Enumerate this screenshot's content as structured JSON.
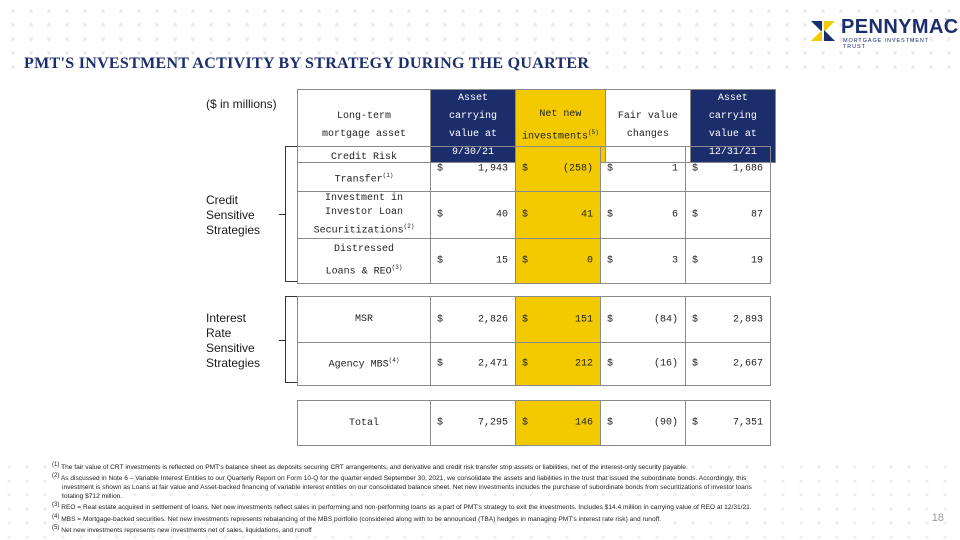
{
  "logo": {
    "name": "PENNYMAC",
    "tm": "™",
    "tagline": "MORTGAGE INVESTMENT TRUST"
  },
  "title": "PMT'S INVESTMENT ACTIVITY BY STRATEGY DURING THE QUARTER",
  "units": "($ in millions)",
  "colors": {
    "navy": "#1b2d6b",
    "yellow": "#f3ca00"
  },
  "header": {
    "label_line1": "Long-term",
    "label_line2": "mortgage asset",
    "col1_line1": "Asset carrying",
    "col1_line2": "value at 9/30/21",
    "col2_line1": "Net new",
    "col2_line2": "investments",
    "col2_note": "(5)",
    "col3_line1": "Fair value",
    "col3_line2": "changes",
    "col4_line1": "Asset carrying",
    "col4_line2": "value at 12/31/21"
  },
  "groups": {
    "credit": "Credit Sensitive Strategies",
    "interest": "Interest Rate Sensitive Strategies"
  },
  "currency": "$",
  "rows": {
    "crt": {
      "line1": "Credit Risk",
      "line2": "Transfer",
      "note": "(1)",
      "v1": "1,943",
      "v2": "(258)",
      "v3": "1",
      "v4": "1,686"
    },
    "ils": {
      "line1": "Investment in",
      "line2": "Investor Loan",
      "line3": "Securitizations",
      "note": "(2)",
      "v1": "40",
      "v2": "41",
      "v3": "6",
      "v4": "87"
    },
    "dist": {
      "line1": "Distressed",
      "line2": "Loans & REO",
      "note": "(3)",
      "v1": "15",
      "v2": "0",
      "v3": "3",
      "v4": "19"
    },
    "msr": {
      "line1": "MSR",
      "v1": "2,826",
      "v2": "151",
      "v3": "(84)",
      "v4": "2,893"
    },
    "mbs": {
      "line1": "Agency MBS",
      "note": "(4)",
      "v1": "2,471",
      "v2": "212",
      "v3": "(16)",
      "v4": "2,667"
    },
    "total": {
      "line1": "Total",
      "v1": "7,295",
      "v2": "146",
      "v3": "(90)",
      "v4": "7,351"
    }
  },
  "footnotes": {
    "n1_mark": "(1)",
    "n1": "The fair value of CRT investments is reflected on PMT's balance sheet as deposits securing CRT arrangements, and derivative and credit risk transfer strip assets or liabilities, net of the interest-only security payable.",
    "n2_mark": "(2)",
    "n2a": "As discussed in Note 6 – Variable Interest Entities to our Quarterly Report on Form 10-Q for the quarter ended September 30, 2021, we consolidate the assets and liabilities in the trust that issued the subordinate bonds. Accordingly, this",
    "n2b": "investment is shown as Loans at fair value and Asset-backed financing of variable interest entities on our consolidated balance sheet. Net new investments includes the purchase of subordinate bonds from securitizations of investor loans",
    "n2c": "totaling $712 million.",
    "n3_mark": "(3)",
    "n3": "REO = Real estate acquired in settlement of loans.  Net new investments reflect sales in performing and non-performing loans as a part of PMT's strategy to exit the investments.  Includes $14.4 million in carrying value of REO at 12/31/21.",
    "n4_mark": "(4)",
    "n4": "MBS = Mortgage-backed securities. Net new investments represents rebalancing of the MBS portfolio (considered along with to be announced (TBA) hedges in managing PMT's interest rate risk) and runoff.",
    "n5_mark": "(5)",
    "n5": "Net new investments represents new investments net of sales, liquidations, and runoff"
  },
  "page_number": "18"
}
